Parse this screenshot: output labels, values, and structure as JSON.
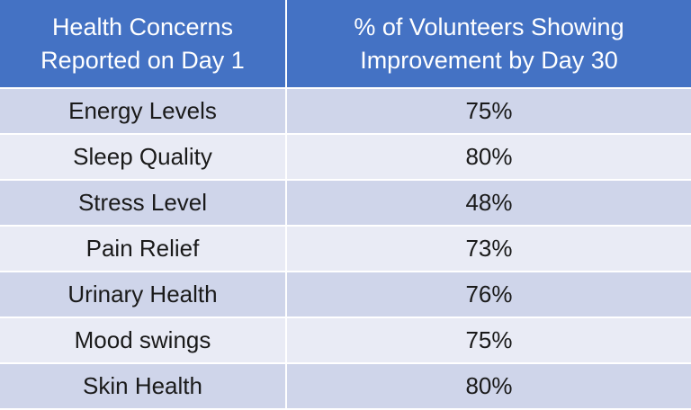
{
  "table": {
    "header": [
      [
        "Health Concerns",
        "Reported on Day 1"
      ],
      [
        "% of Volunteers Showing",
        "Improvement by Day 30"
      ]
    ],
    "rows": [
      [
        "Energy Levels",
        "75%"
      ],
      [
        "Sleep Quality",
        "80%"
      ],
      [
        "Stress Level",
        "48%"
      ],
      [
        "Pain Relief",
        "73%"
      ],
      [
        "Urinary Health",
        "76%"
      ],
      [
        "Mood swings",
        "75%"
      ],
      [
        "Skin Health",
        "80%"
      ]
    ]
  }
}
